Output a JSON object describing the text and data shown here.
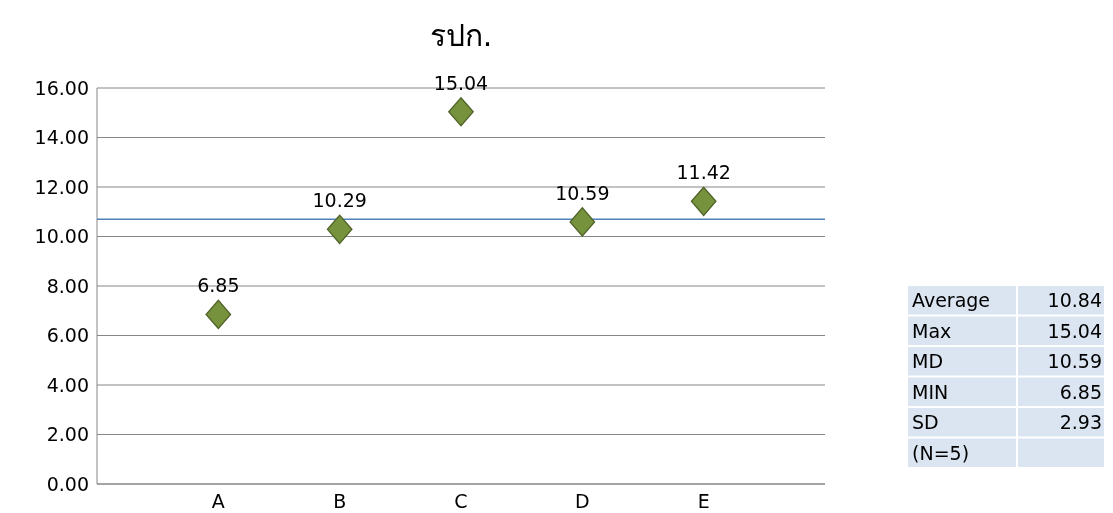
{
  "chart_data": {
    "type": "scatter",
    "title": "รปก.",
    "categories": [
      "A",
      "B",
      "C",
      "D",
      "E"
    ],
    "series": [
      {
        "color": "#76923c",
        "values": [
          6.85,
          10.29,
          15.04,
          10.59,
          11.42
        ]
      }
    ],
    "marker": "diamond",
    "data_labels": true,
    "ylim": [
      0,
      16
    ],
    "yticks": [
      {
        "value": 0,
        "label": "0.00"
      },
      {
        "value": 2,
        "label": "2.00"
      },
      {
        "value": 4,
        "label": "4.00"
      },
      {
        "value": 6,
        "label": "6.00"
      },
      {
        "value": 8,
        "label": "8.00"
      },
      {
        "value": 10,
        "label": "10.00"
      },
      {
        "value": 12,
        "label": "12.00"
      },
      {
        "value": 14,
        "label": "14.00"
      },
      {
        "value": 16,
        "label": "16.00"
      }
    ],
    "grid": "y",
    "ref_lines": [
      {
        "axis": "y",
        "value": 10.7,
        "color": "#4f81bd"
      }
    ],
    "annotations": [
      "Average",
      "10.84",
      "Max",
      "15.04",
      "MD",
      "10.59",
      "MIN",
      "6.85",
      "SD",
      "2.93",
      "(N=5)"
    ]
  }
}
